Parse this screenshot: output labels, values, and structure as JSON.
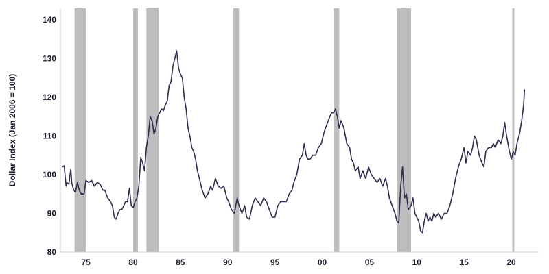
{
  "chart_data": {
    "type": "line",
    "ylabel": "Dollar Index (Jan 2006 = 100)",
    "xlabel": "",
    "ylim": [
      80,
      143
    ],
    "xlim": [
      1972.3,
      1922.9
    ],
    "y_ticks": [
      80,
      90,
      100,
      110,
      120,
      130,
      140
    ],
    "x_ticks": [
      {
        "value": 1975,
        "label": "75"
      },
      {
        "value": 1980,
        "label": "80"
      },
      {
        "value": 1985,
        "label": "85"
      },
      {
        "value": 1990,
        "label": "90"
      },
      {
        "value": 1995,
        "label": "95"
      },
      {
        "value": 2000,
        "label": "00"
      },
      {
        "value": 2005,
        "label": "05"
      },
      {
        "value": 2010,
        "label": "10"
      },
      {
        "value": 2015,
        "label": "15"
      },
      {
        "value": 2020,
        "label": "20"
      }
    ],
    "grid": false,
    "line_color": "#2e2d4d",
    "band_color": "#bdbdbd",
    "recession_bands": [
      [
        1973.8,
        1975.0
      ],
      [
        1980.0,
        1980.5
      ],
      [
        1981.4,
        1982.7
      ],
      [
        1990.6,
        1991.2
      ],
      [
        2001.2,
        2001.8
      ],
      [
        2007.9,
        2009.4
      ],
      [
        2020.1,
        2020.3
      ]
    ],
    "series": [
      {
        "points": [
          [
            1972.5,
            102
          ],
          [
            1972.7,
            102.3
          ],
          [
            1972.9,
            97
          ],
          [
            1973.0,
            98
          ],
          [
            1973.2,
            97.5
          ],
          [
            1973.4,
            101.5
          ],
          [
            1973.5,
            98
          ],
          [
            1973.7,
            96
          ],
          [
            1973.9,
            95.5
          ],
          [
            1974.1,
            98
          ],
          [
            1974.3,
            96
          ],
          [
            1974.5,
            95
          ],
          [
            1974.8,
            95
          ],
          [
            1975.0,
            98.5
          ],
          [
            1975.3,
            98
          ],
          [
            1975.6,
            98.5
          ],
          [
            1975.9,
            97
          ],
          [
            1976.2,
            98
          ],
          [
            1976.5,
            97.5
          ],
          [
            1976.8,
            96
          ],
          [
            1977.0,
            96
          ],
          [
            1977.3,
            94
          ],
          [
            1977.6,
            93
          ],
          [
            1977.8,
            92
          ],
          [
            1978.0,
            89
          ],
          [
            1978.2,
            88.5
          ],
          [
            1978.4,
            90
          ],
          [
            1978.6,
            91
          ],
          [
            1978.8,
            91
          ],
          [
            1979.0,
            92
          ],
          [
            1979.2,
            93
          ],
          [
            1979.4,
            93
          ],
          [
            1979.6,
            96.5
          ],
          [
            1979.8,
            92
          ],
          [
            1980.0,
            91.5
          ],
          [
            1980.2,
            93
          ],
          [
            1980.4,
            94
          ],
          [
            1980.6,
            97
          ],
          [
            1980.8,
            104.5
          ],
          [
            1981.0,
            103
          ],
          [
            1981.2,
            101
          ],
          [
            1981.4,
            107
          ],
          [
            1981.6,
            110
          ],
          [
            1981.8,
            115
          ],
          [
            1982.0,
            114
          ],
          [
            1982.2,
            110.5
          ],
          [
            1982.4,
            112
          ],
          [
            1982.6,
            115
          ],
          [
            1982.8,
            116
          ],
          [
            1983.0,
            117
          ],
          [
            1983.2,
            116.5
          ],
          [
            1983.4,
            118
          ],
          [
            1983.6,
            119
          ],
          [
            1983.8,
            123
          ],
          [
            1984.0,
            124
          ],
          [
            1984.2,
            128
          ],
          [
            1984.4,
            130
          ],
          [
            1984.6,
            132
          ],
          [
            1984.8,
            127.5
          ],
          [
            1985.0,
            126
          ],
          [
            1985.2,
            125
          ],
          [
            1985.4,
            120
          ],
          [
            1985.6,
            117
          ],
          [
            1985.8,
            112
          ],
          [
            1986.0,
            110
          ],
          [
            1986.2,
            107
          ],
          [
            1986.4,
            106
          ],
          [
            1986.6,
            104
          ],
          [
            1986.8,
            101
          ],
          [
            1987.0,
            99
          ],
          [
            1987.3,
            96
          ],
          [
            1987.6,
            94
          ],
          [
            1987.9,
            95
          ],
          [
            1988.2,
            97
          ],
          [
            1988.4,
            96
          ],
          [
            1988.7,
            99
          ],
          [
            1989.0,
            97
          ],
          [
            1989.3,
            96.5
          ],
          [
            1989.6,
            97
          ],
          [
            1989.9,
            94
          ],
          [
            1990.1,
            93
          ],
          [
            1990.4,
            91
          ],
          [
            1990.7,
            90
          ],
          [
            1991.0,
            94
          ],
          [
            1991.2,
            92
          ],
          [
            1991.5,
            90
          ],
          [
            1991.8,
            92
          ],
          [
            1992.0,
            89
          ],
          [
            1992.3,
            88.5
          ],
          [
            1992.6,
            92
          ],
          [
            1992.9,
            94
          ],
          [
            1993.2,
            93
          ],
          [
            1993.5,
            92
          ],
          [
            1993.8,
            94
          ],
          [
            1994.1,
            93
          ],
          [
            1994.4,
            91
          ],
          [
            1994.7,
            89
          ],
          [
            1995.0,
            89
          ],
          [
            1995.3,
            92
          ],
          [
            1995.6,
            93
          ],
          [
            1995.9,
            93
          ],
          [
            1996.2,
            93
          ],
          [
            1996.5,
            95
          ],
          [
            1996.8,
            96
          ],
          [
            1997.0,
            98
          ],
          [
            1997.3,
            100
          ],
          [
            1997.6,
            104
          ],
          [
            1997.9,
            105
          ],
          [
            1998.1,
            108
          ],
          [
            1998.3,
            105
          ],
          [
            1998.5,
            104
          ],
          [
            1998.7,
            104
          ],
          [
            1999.0,
            105
          ],
          [
            1999.3,
            105
          ],
          [
            1999.6,
            107
          ],
          [
            1999.9,
            108
          ],
          [
            2000.2,
            111
          ],
          [
            2000.5,
            113
          ],
          [
            2000.8,
            115
          ],
          [
            2001.0,
            116
          ],
          [
            2001.2,
            116
          ],
          [
            2001.4,
            117
          ],
          [
            2001.6,
            115
          ],
          [
            2001.8,
            112
          ],
          [
            2002.0,
            114
          ],
          [
            2002.3,
            112
          ],
          [
            2002.6,
            108
          ],
          [
            2002.9,
            107
          ],
          [
            2003.1,
            104
          ],
          [
            2003.3,
            103
          ],
          [
            2003.5,
            101
          ],
          [
            2003.8,
            102
          ],
          [
            2004.0,
            99
          ],
          [
            2004.3,
            101
          ],
          [
            2004.6,
            99
          ],
          [
            2004.9,
            102
          ],
          [
            2005.2,
            100
          ],
          [
            2005.5,
            99
          ],
          [
            2005.8,
            98
          ],
          [
            2006.1,
            99
          ],
          [
            2006.4,
            97
          ],
          [
            2006.7,
            99
          ],
          [
            2006.9,
            97
          ],
          [
            2007.1,
            94
          ],
          [
            2007.4,
            92
          ],
          [
            2007.7,
            90
          ],
          [
            2007.9,
            88
          ],
          [
            2008.1,
            87.5
          ],
          [
            2008.3,
            97
          ],
          [
            2008.5,
            102
          ],
          [
            2008.7,
            94
          ],
          [
            2008.9,
            95
          ],
          [
            2009.1,
            91
          ],
          [
            2009.4,
            92
          ],
          [
            2009.6,
            94
          ],
          [
            2009.8,
            90
          ],
          [
            2010.0,
            89
          ],
          [
            2010.2,
            88
          ],
          [
            2010.4,
            85.5
          ],
          [
            2010.6,
            85
          ],
          [
            2010.8,
            88
          ],
          [
            2011.0,
            90
          ],
          [
            2011.2,
            88
          ],
          [
            2011.4,
            89
          ],
          [
            2011.6,
            88
          ],
          [
            2011.8,
            90
          ],
          [
            2012.0,
            89
          ],
          [
            2012.3,
            90
          ],
          [
            2012.6,
            88.5
          ],
          [
            2012.9,
            90
          ],
          [
            2013.2,
            90
          ],
          [
            2013.5,
            92
          ],
          [
            2013.8,
            95
          ],
          [
            2014.1,
            99
          ],
          [
            2014.4,
            102
          ],
          [
            2014.7,
            104
          ],
          [
            2015.0,
            107
          ],
          [
            2015.2,
            103
          ],
          [
            2015.4,
            106
          ],
          [
            2015.7,
            105
          ],
          [
            2015.9,
            107
          ],
          [
            2016.1,
            110
          ],
          [
            2016.3,
            109
          ],
          [
            2016.6,
            105
          ],
          [
            2016.9,
            103
          ],
          [
            2017.1,
            102
          ],
          [
            2017.3,
            106
          ],
          [
            2017.6,
            107
          ],
          [
            2017.9,
            107
          ],
          [
            2018.1,
            108
          ],
          [
            2018.3,
            107
          ],
          [
            2018.6,
            109
          ],
          [
            2018.9,
            108
          ],
          [
            2019.1,
            110
          ],
          [
            2019.3,
            113.5
          ],
          [
            2019.5,
            110
          ],
          [
            2019.8,
            106
          ],
          [
            2020.0,
            104
          ],
          [
            2020.2,
            106
          ],
          [
            2020.4,
            105
          ],
          [
            2020.6,
            108
          ],
          [
            2020.9,
            111
          ],
          [
            2021.1,
            114
          ],
          [
            2021.3,
            118
          ],
          [
            2021.4,
            122
          ]
        ]
      }
    ]
  }
}
